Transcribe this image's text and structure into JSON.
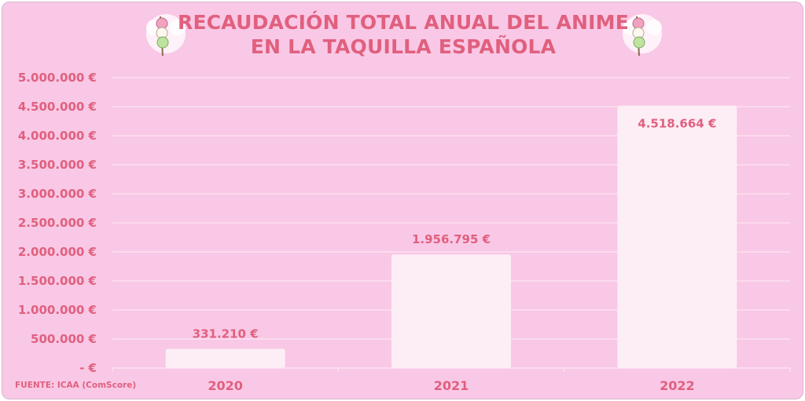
{
  "title": {
    "line1": "RECAUDACIÓN TOTAL ANUAL DEL ANIME",
    "line2": "EN LA TAQUILLA ESPAÑOLA"
  },
  "source": "FUENTE: ICAA (ComScore)",
  "colors": {
    "background": "#f9c8e6",
    "accent": "#e0607e",
    "bar": "#fdeef6",
    "grid": "#fde4f2"
  },
  "icons": [
    "dango-icon",
    "dango-icon"
  ],
  "chart_data": {
    "type": "bar",
    "title": "RECAUDACIÓN TOTAL ANUAL DEL ANIME EN LA TAQUILLA ESPAÑOLA",
    "categories": [
      "2020",
      "2021",
      "2022"
    ],
    "values": [
      331210,
      1956795,
      4518664
    ],
    "data_labels": [
      "331.210 €",
      "1.956.795 €",
      "4.518.664 €"
    ],
    "ylim": [
      0,
      5000000
    ],
    "yticks": [
      0,
      500000,
      1000000,
      1500000,
      2000000,
      2500000,
      3000000,
      3500000,
      4000000,
      4500000,
      5000000
    ],
    "ytick_labels": [
      "-   €",
      "500.000 €",
      "1.000.000 €",
      "1.500.000 €",
      "2.000.000 €",
      "2.500.000 €",
      "3.000.000 €",
      "3.500.000 €",
      "4.000.000 €",
      "4.500.000 €",
      "5.000.000 €"
    ],
    "grid": true,
    "legend": "none"
  }
}
